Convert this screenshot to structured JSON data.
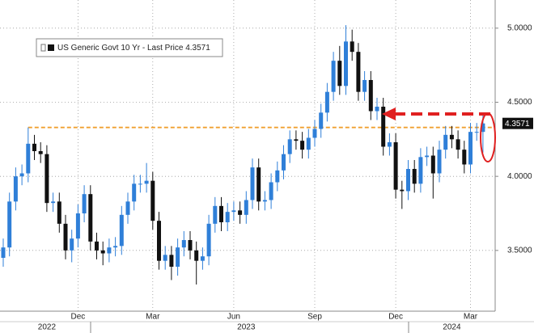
{
  "chart_data": {
    "type": "candlestick",
    "legend_label": "US Generic Govt 10 Yr - Last Price 4.3571",
    "up_color": "#2f7fd8",
    "down_color": "#111111",
    "ylim": [
      3.09,
      5.19
    ],
    "yticks": [
      {
        "value": 3.5,
        "label": "3.5000"
      },
      {
        "value": 4,
        "label": "4.0000"
      },
      {
        "value": 4.5,
        "label": "4.5000"
      },
      {
        "value": 5,
        "label": "5.0000"
      }
    ],
    "grid": true,
    "hline": {
      "value": 4.33,
      "color": "#f0a030"
    },
    "categories": [
      null,
      null,
      null,
      null,
      null,
      null,
      null,
      null,
      null,
      null,
      null,
      null,
      "Dec",
      null,
      null,
      null,
      null,
      null,
      null,
      null,
      null,
      null,
      null,
      null,
      "Mar",
      null,
      null,
      null,
      null,
      null,
      null,
      null,
      null,
      null,
      null,
      null,
      null,
      "Jun",
      null,
      null,
      null,
      null,
      null,
      null,
      null,
      null,
      null,
      null,
      null,
      null,
      "Sep",
      null,
      null,
      null,
      null,
      null,
      null,
      null,
      null,
      null,
      null,
      null,
      null,
      "Dec",
      null,
      null,
      null,
      null,
      null,
      null,
      null,
      null,
      null,
      null,
      null,
      "Mar",
      null,
      null
    ],
    "years": [
      null,
      null,
      null,
      null,
      null,
      null,
      null,
      "2022",
      null,
      null,
      null,
      null,
      null,
      null,
      null,
      null,
      null,
      null,
      null,
      null,
      null,
      null,
      null,
      null,
      null,
      null,
      null,
      null,
      null,
      null,
      null,
      null,
      null,
      null,
      null,
      null,
      null,
      null,
      null,
      "2023",
      null,
      null,
      null,
      null,
      null,
      null,
      null,
      null,
      null,
      null,
      null,
      null,
      null,
      null,
      null,
      null,
      null,
      null,
      null,
      null,
      null,
      null,
      null,
      null,
      null,
      null,
      null,
      null,
      null,
      null,
      null,
      null,
      "2024",
      null,
      null,
      null,
      null,
      null
    ],
    "open": [
      3.45,
      3.52,
      3.83,
      4.0,
      4.02,
      4.22,
      4.17,
      4.15,
      3.82,
      3.83,
      3.68,
      3.5,
      3.58,
      3.75,
      3.88,
      3.56,
      3.5,
      3.48,
      3.52,
      3.53,
      3.74,
      3.83,
      3.95,
      3.95,
      3.97,
      3.7,
      3.43,
      3.47,
      3.39,
      3.52,
      3.57,
      3.5,
      3.43,
      3.46,
      3.68,
      3.8,
      3.69,
      3.76,
      3.77,
      3.74,
      3.84,
      4.06,
      3.83,
      3.84,
      3.96,
      4.04,
      4.15,
      4.25,
      4.24,
      4.18,
      4.26,
      4.32,
      4.43,
      4.57,
      4.78,
      4.61,
      4.91,
      4.84,
      4.57,
      4.65,
      4.44,
      4.47,
      4.2,
      4.23,
      3.91,
      3.9,
      4.05,
      3.95,
      4.13,
      4.14,
      4.02,
      4.18,
      4.28,
      4.25,
      4.18,
      4.08,
      4.3,
      4.3
    ],
    "high": [
      3.58,
      3.89,
      4.06,
      4.08,
      4.33,
      4.28,
      4.23,
      4.21,
      3.89,
      3.89,
      3.74,
      3.64,
      3.81,
      3.94,
      3.94,
      3.62,
      3.56,
      3.58,
      3.59,
      3.8,
      3.89,
      4.01,
      4.01,
      4.09,
      4.03,
      3.76,
      3.53,
      3.53,
      3.58,
      3.63,
      3.63,
      3.56,
      3.52,
      3.74,
      3.86,
      3.86,
      3.82,
      3.83,
      3.83,
      3.9,
      4.12,
      4.12,
      3.9,
      4.02,
      4.1,
      4.21,
      4.31,
      4.31,
      4.3,
      4.32,
      4.38,
      4.49,
      4.63,
      4.84,
      4.88,
      5.02,
      4.99,
      4.9,
      4.71,
      4.71,
      4.53,
      4.53,
      4.29,
      4.29,
      3.97,
      4.11,
      4.11,
      4.19,
      4.2,
      4.2,
      4.24,
      4.34,
      4.34,
      4.31,
      4.24,
      4.36,
      4.36,
      4.42
    ],
    "low": [
      3.39,
      3.46,
      3.77,
      3.94,
      3.96,
      4.11,
      4.09,
      3.76,
      3.76,
      3.62,
      3.44,
      3.42,
      3.52,
      3.69,
      3.5,
      3.44,
      3.4,
      3.42,
      3.46,
      3.47,
      3.68,
      3.77,
      3.89,
      3.89,
      3.64,
      3.37,
      3.37,
      3.3,
      3.33,
      3.46,
      3.44,
      3.27,
      3.37,
      3.4,
      3.62,
      3.63,
      3.63,
      3.7,
      3.68,
      3.68,
      3.78,
      3.77,
      3.77,
      3.78,
      3.9,
      3.98,
      4.09,
      4.18,
      4.12,
      4.12,
      4.2,
      4.26,
      4.37,
      4.51,
      4.55,
      4.55,
      4.78,
      4.51,
      4.51,
      4.38,
      4.38,
      4.14,
      4.14,
      3.85,
      3.78,
      3.84,
      3.89,
      3.89,
      4.07,
      3.85,
      3.96,
      4.12,
      4.19,
      4.12,
      4.02,
      4.02,
      4.24,
      4.16
    ],
    "close": [
      3.52,
      3.83,
      4.0,
      4.02,
      4.22,
      4.17,
      4.15,
      3.82,
      3.83,
      3.68,
      3.5,
      3.58,
      3.75,
      3.88,
      3.56,
      3.5,
      3.48,
      3.52,
      3.53,
      3.74,
      3.83,
      3.95,
      3.95,
      3.97,
      3.7,
      3.43,
      3.47,
      3.39,
      3.52,
      3.57,
      3.5,
      3.43,
      3.46,
      3.68,
      3.8,
      3.69,
      3.76,
      3.77,
      3.74,
      3.84,
      4.06,
      3.83,
      3.84,
      3.96,
      4.04,
      4.15,
      4.25,
      4.24,
      4.18,
      4.26,
      4.32,
      4.43,
      4.57,
      4.78,
      4.61,
      4.91,
      4.84,
      4.57,
      4.65,
      4.44,
      4.47,
      4.2,
      4.23,
      3.91,
      3.9,
      4.05,
      3.95,
      4.13,
      4.14,
      4.02,
      4.18,
      4.28,
      4.25,
      4.18,
      4.08,
      4.3,
      4.3,
      4.3571
    ]
  }
}
